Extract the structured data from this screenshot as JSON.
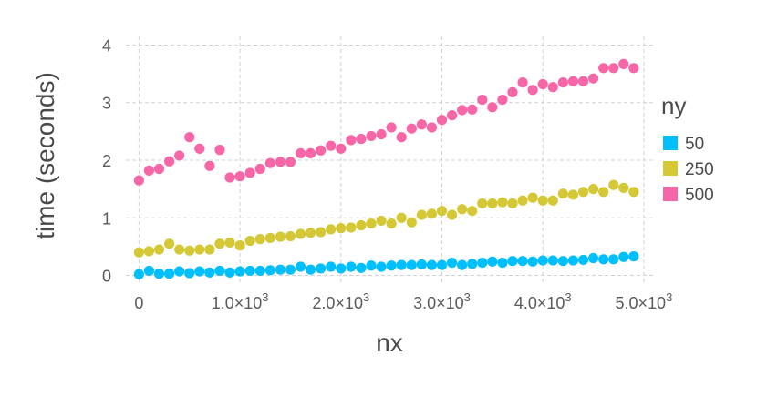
{
  "chart_data": {
    "type": "scatter",
    "xlabel": "nx",
    "ylabel": "time (seconds)",
    "xlim": [
      -130,
      5100
    ],
    "ylim": [
      -0.15,
      4.15
    ],
    "x_ticks": [
      0,
      1000,
      2000,
      3000,
      4000,
      5000
    ],
    "x_tick_labels": [
      {
        "base": "0",
        "exp": ""
      },
      {
        "base": "1.0×10",
        "exp": "3"
      },
      {
        "base": "2.0×10",
        "exp": "3"
      },
      {
        "base": "3.0×10",
        "exp": "3"
      },
      {
        "base": "4.0×10",
        "exp": "3"
      },
      {
        "base": "5.0×10",
        "exp": "3"
      }
    ],
    "y_ticks": [
      0,
      1,
      2,
      3,
      4
    ],
    "y_tick_labels": [
      "0",
      "1",
      "2",
      "3",
      "4"
    ],
    "grid": true,
    "legend": {
      "title": "ny",
      "placement": "right"
    },
    "x": [
      0,
      100,
      200,
      300,
      400,
      500,
      600,
      700,
      800,
      900,
      1000,
      1100,
      1200,
      1300,
      1400,
      1500,
      1600,
      1700,
      1800,
      1900,
      2000,
      2100,
      2200,
      2300,
      2400,
      2500,
      2600,
      2700,
      2800,
      2900,
      3000,
      3100,
      3200,
      3300,
      3400,
      3500,
      3600,
      3700,
      3800,
      3900,
      4000,
      4100,
      4200,
      4300,
      4400,
      4500,
      4600,
      4700,
      4800,
      4900
    ],
    "series": [
      {
        "name": "50",
        "color": "#00bfff",
        "values": [
          0.02,
          0.08,
          0.03,
          0.03,
          0.07,
          0.04,
          0.07,
          0.05,
          0.08,
          0.05,
          0.07,
          0.08,
          0.08,
          0.09,
          0.1,
          0.1,
          0.15,
          0.1,
          0.12,
          0.15,
          0.12,
          0.15,
          0.13,
          0.17,
          0.15,
          0.17,
          0.18,
          0.18,
          0.19,
          0.18,
          0.18,
          0.22,
          0.18,
          0.2,
          0.22,
          0.24,
          0.22,
          0.25,
          0.25,
          0.24,
          0.26,
          0.26,
          0.25,
          0.26,
          0.27,
          0.3,
          0.28,
          0.28,
          0.32,
          0.33
        ]
      },
      {
        "name": "250",
        "color": "#d4c837",
        "values": [
          0.4,
          0.42,
          0.45,
          0.55,
          0.45,
          0.43,
          0.45,
          0.45,
          0.55,
          0.57,
          0.52,
          0.6,
          0.63,
          0.65,
          0.67,
          0.68,
          0.72,
          0.74,
          0.75,
          0.8,
          0.82,
          0.83,
          0.87,
          0.9,
          0.95,
          0.9,
          1.0,
          0.92,
          1.05,
          1.07,
          1.12,
          1.05,
          1.15,
          1.12,
          1.25,
          1.25,
          1.27,
          1.25,
          1.3,
          1.35,
          1.3,
          1.3,
          1.42,
          1.4,
          1.45,
          1.5,
          1.45,
          1.57,
          1.52,
          1.45
        ]
      },
      {
        "name": "500",
        "color": "#f766a6",
        "values": [
          1.65,
          1.82,
          1.85,
          1.98,
          2.08,
          2.4,
          2.2,
          1.9,
          2.18,
          1.7,
          1.72,
          1.78,
          1.85,
          1.95,
          1.97,
          1.97,
          2.12,
          2.12,
          2.17,
          2.25,
          2.2,
          2.35,
          2.37,
          2.42,
          2.45,
          2.57,
          2.4,
          2.55,
          2.62,
          2.57,
          2.7,
          2.78,
          2.87,
          2.88,
          3.05,
          2.92,
          3.05,
          3.18,
          3.35,
          3.22,
          3.32,
          3.27,
          3.35,
          3.37,
          3.37,
          3.42,
          3.6,
          3.6,
          3.67,
          3.6
        ]
      }
    ]
  }
}
